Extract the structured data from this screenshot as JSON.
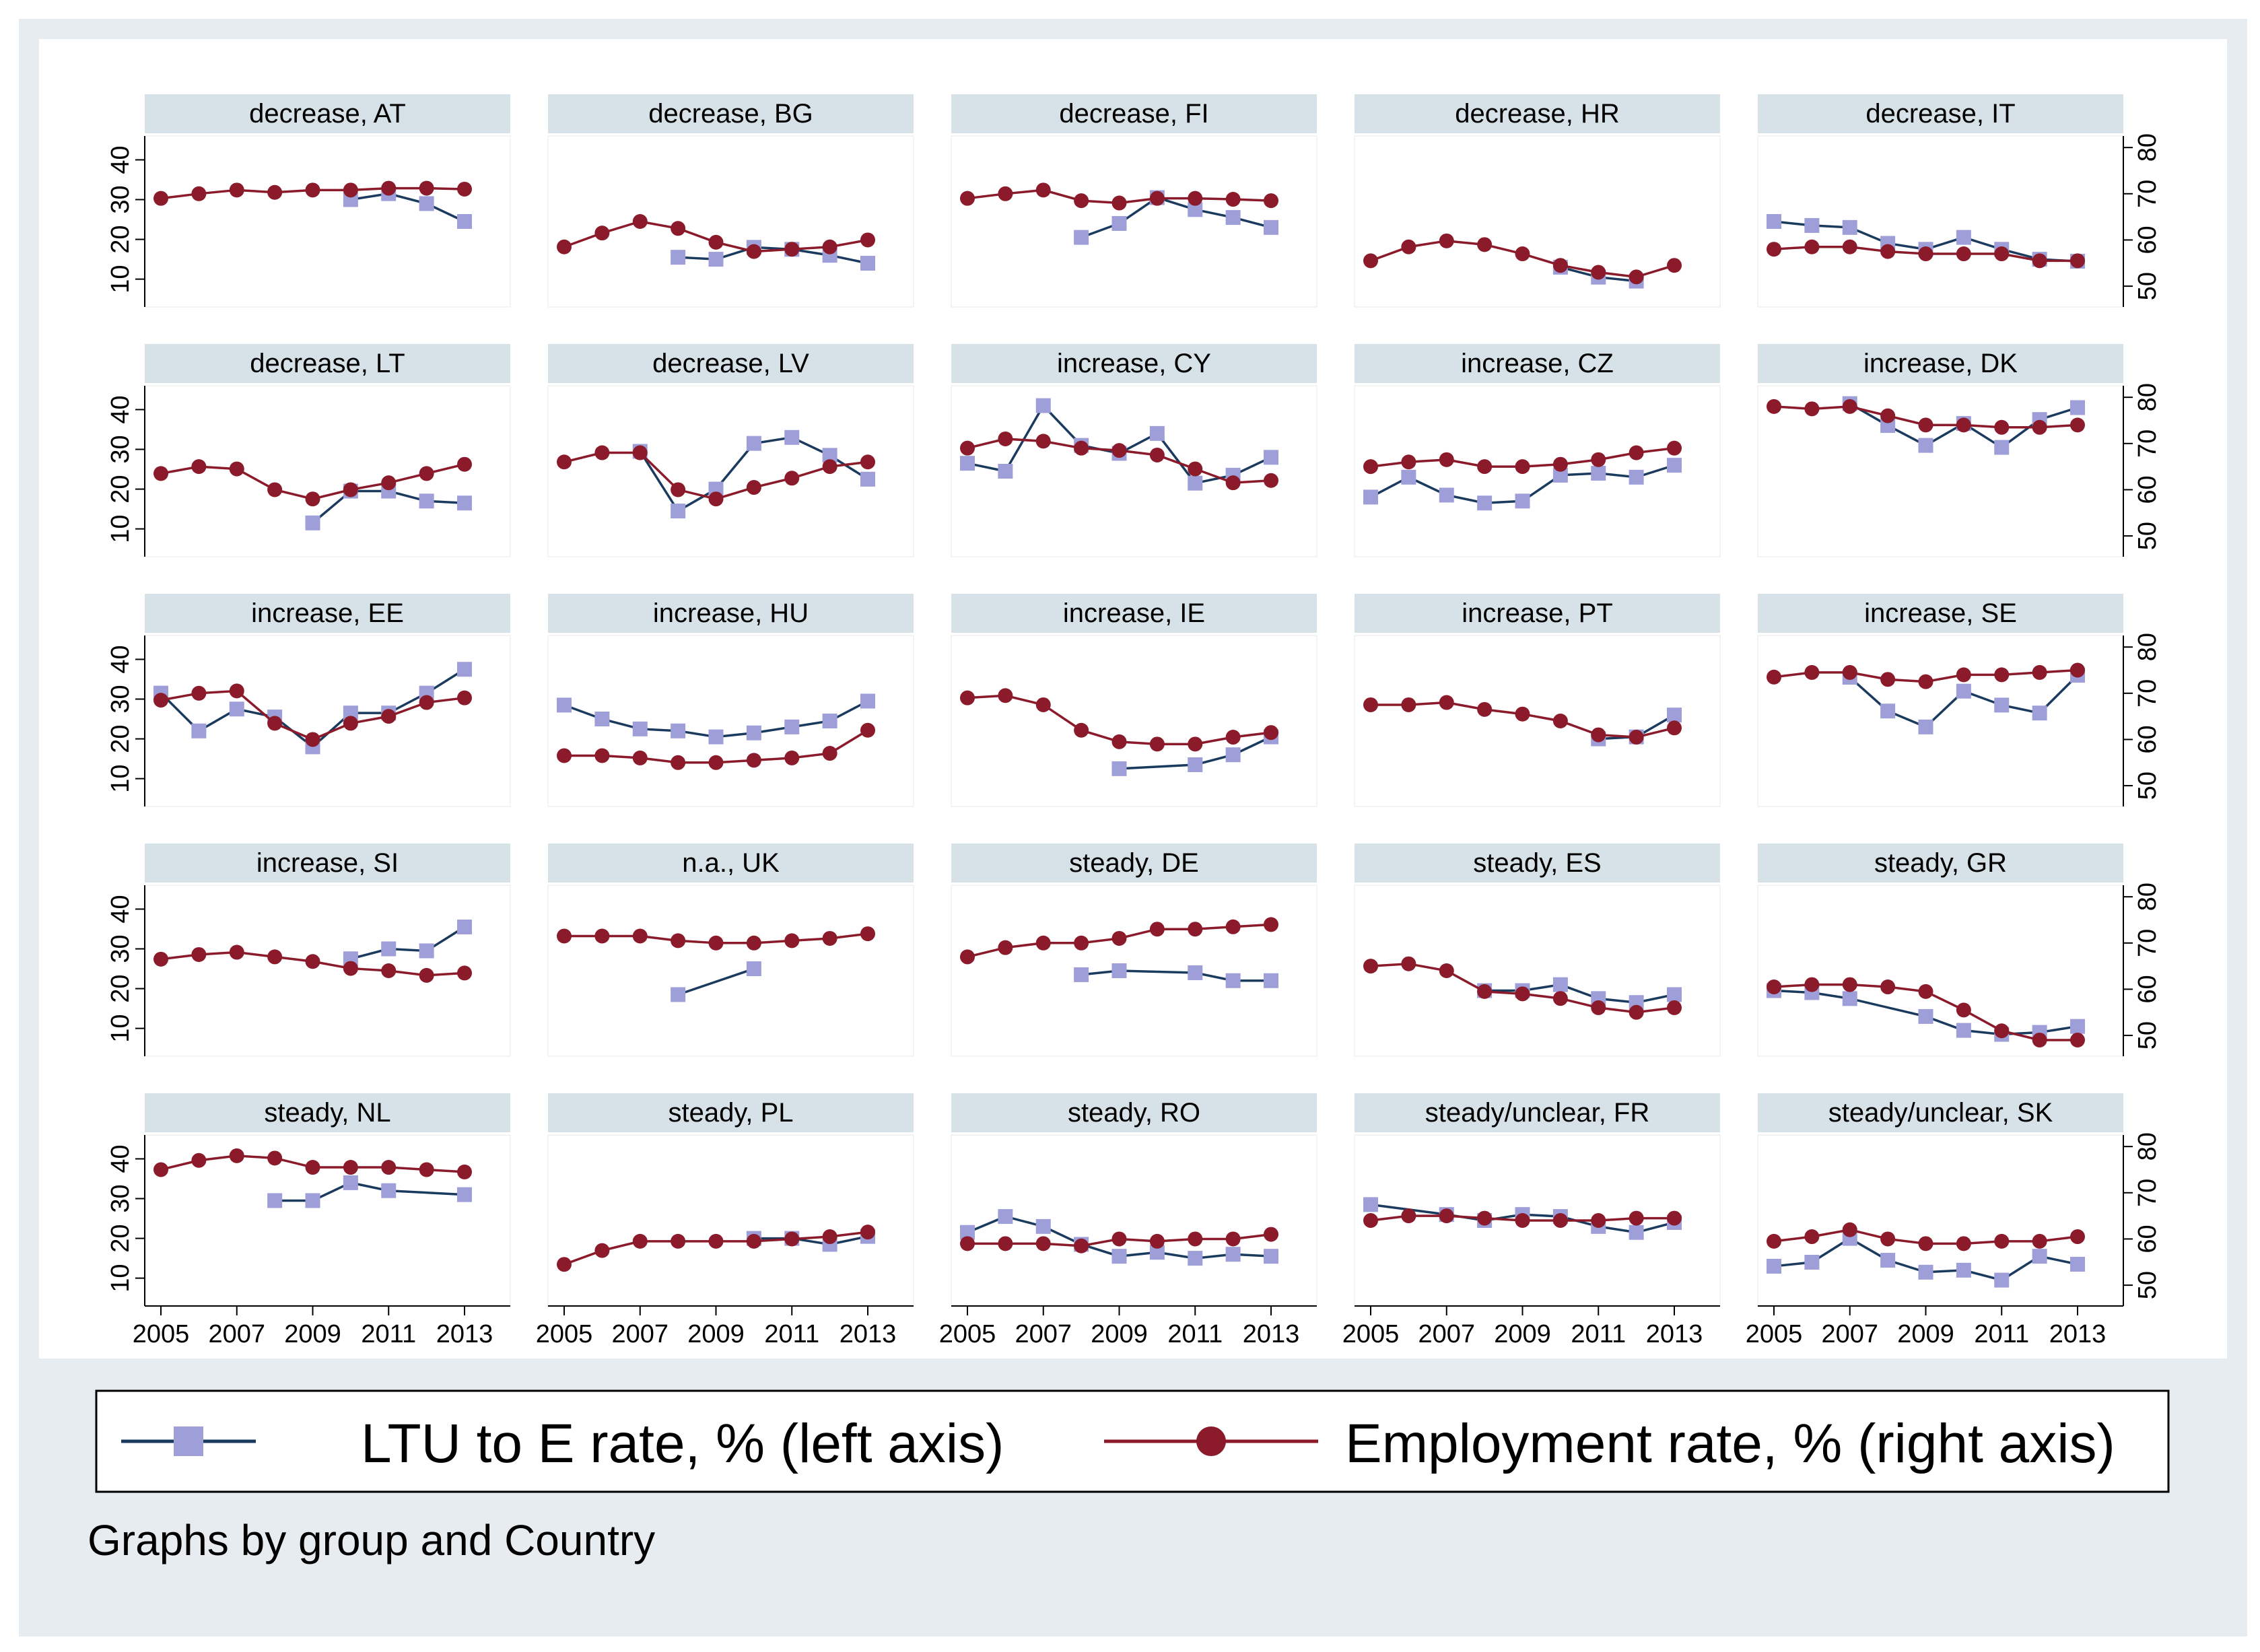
{
  "chart_data": {
    "type": "line",
    "facet_by": "group and Country",
    "x": [
      2005,
      2006,
      2007,
      2008,
      2009,
      2010,
      2011,
      2012,
      2013
    ],
    "x_ticks": [
      2005,
      2007,
      2009,
      2011,
      2013
    ],
    "left_axis": {
      "ticks": [
        10,
        20,
        30,
        40
      ],
      "ylim": [
        3,
        46
      ]
    },
    "right_axis": {
      "ticks": [
        50,
        60,
        70,
        80
      ],
      "ylim": [
        45.5,
        82.5
      ]
    },
    "series_meta": [
      {
        "name": "LTU to E rate, % (left axis)",
        "axis": "left",
        "color": "#1a3a5e",
        "marker": "square",
        "marker_color": "#9e9ed8"
      },
      {
        "name": "Employment rate, % (right axis)",
        "axis": "right",
        "color": "#8b1a2a",
        "marker": "circle",
        "marker_color": "#8b1a2a"
      }
    ],
    "note": "Graphs by group and Country",
    "panels": [
      {
        "title": "decrease, AT",
        "ltu": [
          null,
          null,
          null,
          null,
          null,
          30,
          31.5,
          29,
          24.5
        ],
        "emp": [
          69,
          70,
          70.8,
          70.3,
          70.8,
          70.8,
          71.2,
          71.2,
          71
        ]
      },
      {
        "title": "decrease, BG",
        "ltu": [
          null,
          null,
          null,
          15.5,
          15,
          18,
          17.5,
          16,
          14
        ],
        "emp": [
          58.5,
          61.5,
          64,
          62.5,
          59.5,
          57.5,
          58,
          58.5,
          60
        ]
      },
      {
        "title": "decrease, FI",
        "ltu": [
          null,
          null,
          null,
          20.5,
          24,
          30.5,
          27.5,
          25.5,
          23
        ],
        "emp": [
          69,
          70,
          70.8,
          68.5,
          68,
          69,
          69,
          68.8,
          68.5
        ]
      },
      {
        "title": "decrease, HR",
        "ltu": [
          null,
          null,
          null,
          null,
          null,
          13,
          10.5,
          9.5,
          null
        ],
        "emp": [
          55.5,
          58.5,
          59.8,
          59,
          57,
          54.5,
          53,
          52,
          54.5
        ]
      },
      {
        "title": "decrease, IT",
        "ltu": [
          24.5,
          23.5,
          23,
          19,
          17.5,
          20.5,
          17.5,
          15,
          14.5
        ],
        "emp": [
          58,
          58.5,
          58.5,
          57.5,
          57,
          57,
          57,
          55.5,
          55.5
        ]
      },
      {
        "title": "decrease, LT",
        "ltu": [
          null,
          null,
          null,
          null,
          11.5,
          19.5,
          19.5,
          17,
          16.5
        ],
        "emp": [
          63.5,
          65,
          64.5,
          60,
          58,
          60,
          61.5,
          63.5,
          65.5
        ]
      },
      {
        "title": "decrease, LV",
        "ltu": [
          null,
          null,
          29.5,
          14.5,
          20,
          31.5,
          33,
          28.5,
          22.5
        ],
        "emp": [
          66,
          68,
          68,
          60,
          58,
          60.5,
          62.5,
          65,
          66
        ]
      },
      {
        "title": "increase, CY",
        "ltu": [
          26.5,
          24.5,
          41,
          31,
          29,
          34,
          21.5,
          23.5,
          28
        ],
        "emp": [
          69,
          71,
          70.5,
          69,
          68.5,
          67.5,
          64.5,
          61.5,
          62
        ]
      },
      {
        "title": "increase, CZ",
        "ltu": [
          18,
          23,
          18.5,
          16.5,
          17,
          23.5,
          24,
          23,
          26
        ],
        "emp": [
          65,
          66,
          66.5,
          65,
          65,
          65.5,
          66.5,
          68,
          69
        ]
      },
      {
        "title": "increase, DK",
        "ltu": [
          null,
          null,
          41.5,
          36,
          31,
          36.5,
          30.5,
          37.5,
          40.5
        ],
        "emp": [
          78,
          77.5,
          78,
          76,
          74,
          74,
          73.5,
          73.5,
          74
        ]
      },
      {
        "title": "increase, EE",
        "ltu": [
          31.5,
          22,
          27.5,
          25.5,
          18,
          26.5,
          26.5,
          31.5,
          37.5
        ],
        "emp": [
          68.5,
          70,
          70.5,
          63.5,
          60,
          63.5,
          65,
          68,
          69
        ]
      },
      {
        "title": "increase, HU",
        "ltu": [
          28.5,
          25,
          22.5,
          22,
          20.5,
          21.5,
          23,
          24.5,
          29.5
        ],
        "emp": [
          56.5,
          56.5,
          56,
          55,
          55,
          55.5,
          56,
          57,
          62
        ]
      },
      {
        "title": "increase, IE",
        "ltu": [
          null,
          null,
          null,
          null,
          12.5,
          null,
          13.5,
          16,
          20.5
        ],
        "emp": [
          69,
          69.5,
          67.5,
          62,
          59.5,
          59,
          59,
          60.5,
          61.5
        ]
      },
      {
        "title": "increase, PT",
        "ltu": [
          null,
          null,
          null,
          null,
          null,
          null,
          20,
          20.5,
          26
        ],
        "emp": [
          67.5,
          67.5,
          68,
          66.5,
          65.5,
          64,
          61,
          60.5,
          62.5
        ]
      },
      {
        "title": "increase, SE",
        "ltu": [
          null,
          null,
          35.5,
          27,
          23,
          32,
          28.5,
          26.5,
          36
        ],
        "emp": [
          73.5,
          74.5,
          74.5,
          73,
          72.5,
          74,
          74,
          74.5,
          75
        ]
      },
      {
        "title": "increase, SI",
        "ltu": [
          null,
          null,
          null,
          null,
          null,
          27.5,
          30,
          29.5,
          35.5
        ],
        "emp": [
          66.5,
          67.5,
          68,
          67,
          66,
          64.5,
          64,
          63,
          63.5
        ]
      },
      {
        "title": "n.a., UK",
        "ltu": [
          null,
          null,
          null,
          18.5,
          null,
          25,
          null,
          null,
          null
        ],
        "emp": [
          71.5,
          71.5,
          71.5,
          70.5,
          70,
          70,
          70.5,
          71,
          72
        ]
      },
      {
        "title": "steady, DE",
        "ltu": [
          null,
          null,
          null,
          23.5,
          24.5,
          null,
          24,
          22,
          22
        ],
        "emp": [
          67,
          69,
          70,
          70,
          71,
          73,
          73,
          73.5,
          74
        ]
      },
      {
        "title": "steady, ES",
        "ltu": [
          null,
          null,
          null,
          19.5,
          19.5,
          21,
          17.5,
          16.5,
          18.5
        ],
        "emp": [
          65,
          65.5,
          64,
          59.5,
          59,
          58,
          56,
          55,
          56
        ]
      },
      {
        "title": "steady, GR",
        "ltu": [
          19.5,
          19,
          17.5,
          null,
          13,
          9.5,
          8.5,
          9,
          10.5
        ],
        "emp": [
          60.5,
          61,
          61,
          60.5,
          59.5,
          55.5,
          51,
          49,
          49
        ]
      },
      {
        "title": "steady, NL",
        "ltu": [
          null,
          null,
          null,
          29.5,
          29.5,
          34,
          32,
          null,
          31
        ],
        "emp": [
          75,
          77,
          78,
          77.5,
          75.5,
          75.5,
          75.5,
          75,
          74.5
        ]
      },
      {
        "title": "steady, PL",
        "ltu": [
          null,
          null,
          null,
          null,
          null,
          20,
          20,
          18.5,
          20.5
        ],
        "emp": [
          54.5,
          57.5,
          59.5,
          59.5,
          59.5,
          59.5,
          60,
          60.5,
          61.5
        ]
      },
      {
        "title": "steady, RO",
        "ltu": [
          21.5,
          25.5,
          23,
          18.5,
          15.5,
          16.5,
          15,
          16,
          15.5
        ],
        "emp": [
          59,
          59,
          59,
          58.5,
          60,
          59.5,
          60,
          60,
          61
        ]
      },
      {
        "title": "steady/unclear, FR",
        "ltu": [
          28.5,
          null,
          26,
          24.5,
          26,
          25.5,
          23,
          21.5,
          24
        ],
        "emp": [
          64,
          65,
          65,
          64.5,
          64,
          64,
          64,
          64.5,
          64.5
        ]
      },
      {
        "title": "steady/unclear, SK",
        "ltu": [
          13,
          14,
          20,
          14.5,
          11.5,
          12,
          9.5,
          15.5,
          13.5
        ],
        "emp": [
          59.5,
          60.5,
          62,
          60,
          59,
          59,
          59.5,
          59.5,
          60.5
        ]
      }
    ]
  }
}
